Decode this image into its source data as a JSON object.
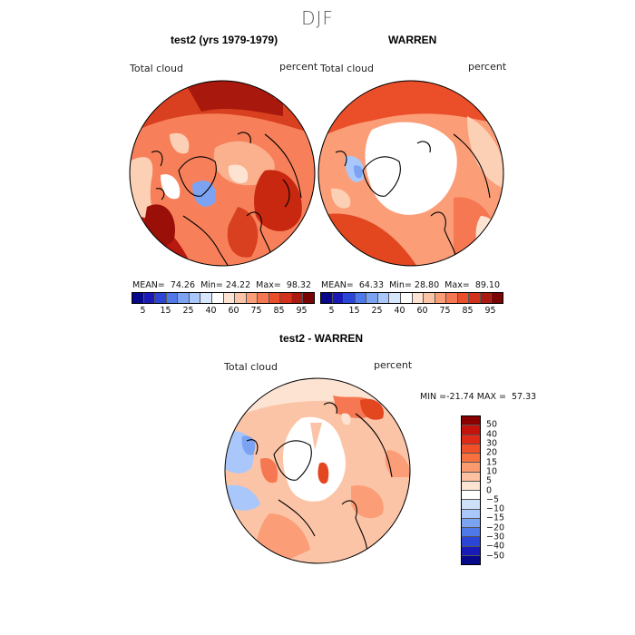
{
  "season_title": "DJF",
  "panels": [
    {
      "title": "test2 (yrs 1979-1979)",
      "variable": "Total cloud",
      "units": "percent",
      "stats": {
        "mean_label": "MEAN=",
        "mean": "74.26",
        "min_label": "Min=",
        "min": "24.22",
        "max_label": "Max=",
        "max": "98.32"
      }
    },
    {
      "title": "WARREN",
      "variable": "Total cloud",
      "units": "percent",
      "stats": {
        "mean_label": "MEAN=",
        "mean": "64.33",
        "min_label": "Min=",
        "min": "28.80",
        "max_label": "Max=",
        "max": "89.10"
      }
    }
  ],
  "top_colorbar": {
    "ticks": [
      "5",
      "15",
      "25",
      "40",
      "60",
      "75",
      "85",
      "95"
    ],
    "colors": [
      "#08088a",
      "#1a1ab8",
      "#2b45d6",
      "#4f78e8",
      "#7ba3f2",
      "#a9c7fa",
      "#d6e6fc",
      "#ffffff",
      "#fde3d2",
      "#fcc4a6",
      "#fb9e78",
      "#f57852",
      "#ea4f2a",
      "#d2321b",
      "#ab1a10",
      "#7a0505"
    ]
  },
  "diff_panel": {
    "title": "test2 - WARREN",
    "variable": "Total cloud",
    "units": "percent",
    "stats": {
      "min_label": "MIN =",
      "min": "-21.74",
      "max_label": "MAX =",
      "max": "57.33"
    }
  },
  "diff_colorbar": {
    "ticks": [
      "50",
      "40",
      "30",
      "20",
      "15",
      "10",
      "5",
      "0",
      "−5",
      "−10",
      "−15",
      "−20",
      "−30",
      "−40",
      "−50"
    ],
    "colors": [
      "#8a0000",
      "#c4130c",
      "#e02a17",
      "#f04f28",
      "#f7703e",
      "#fb9a6e",
      "#fdc0a0",
      "#fde3d2",
      "#ffffff",
      "#cfe0fb",
      "#a9c7fa",
      "#7ba3f2",
      "#4f78e8",
      "#2b45d6",
      "#1a1ab8",
      "#08088a"
    ]
  }
}
